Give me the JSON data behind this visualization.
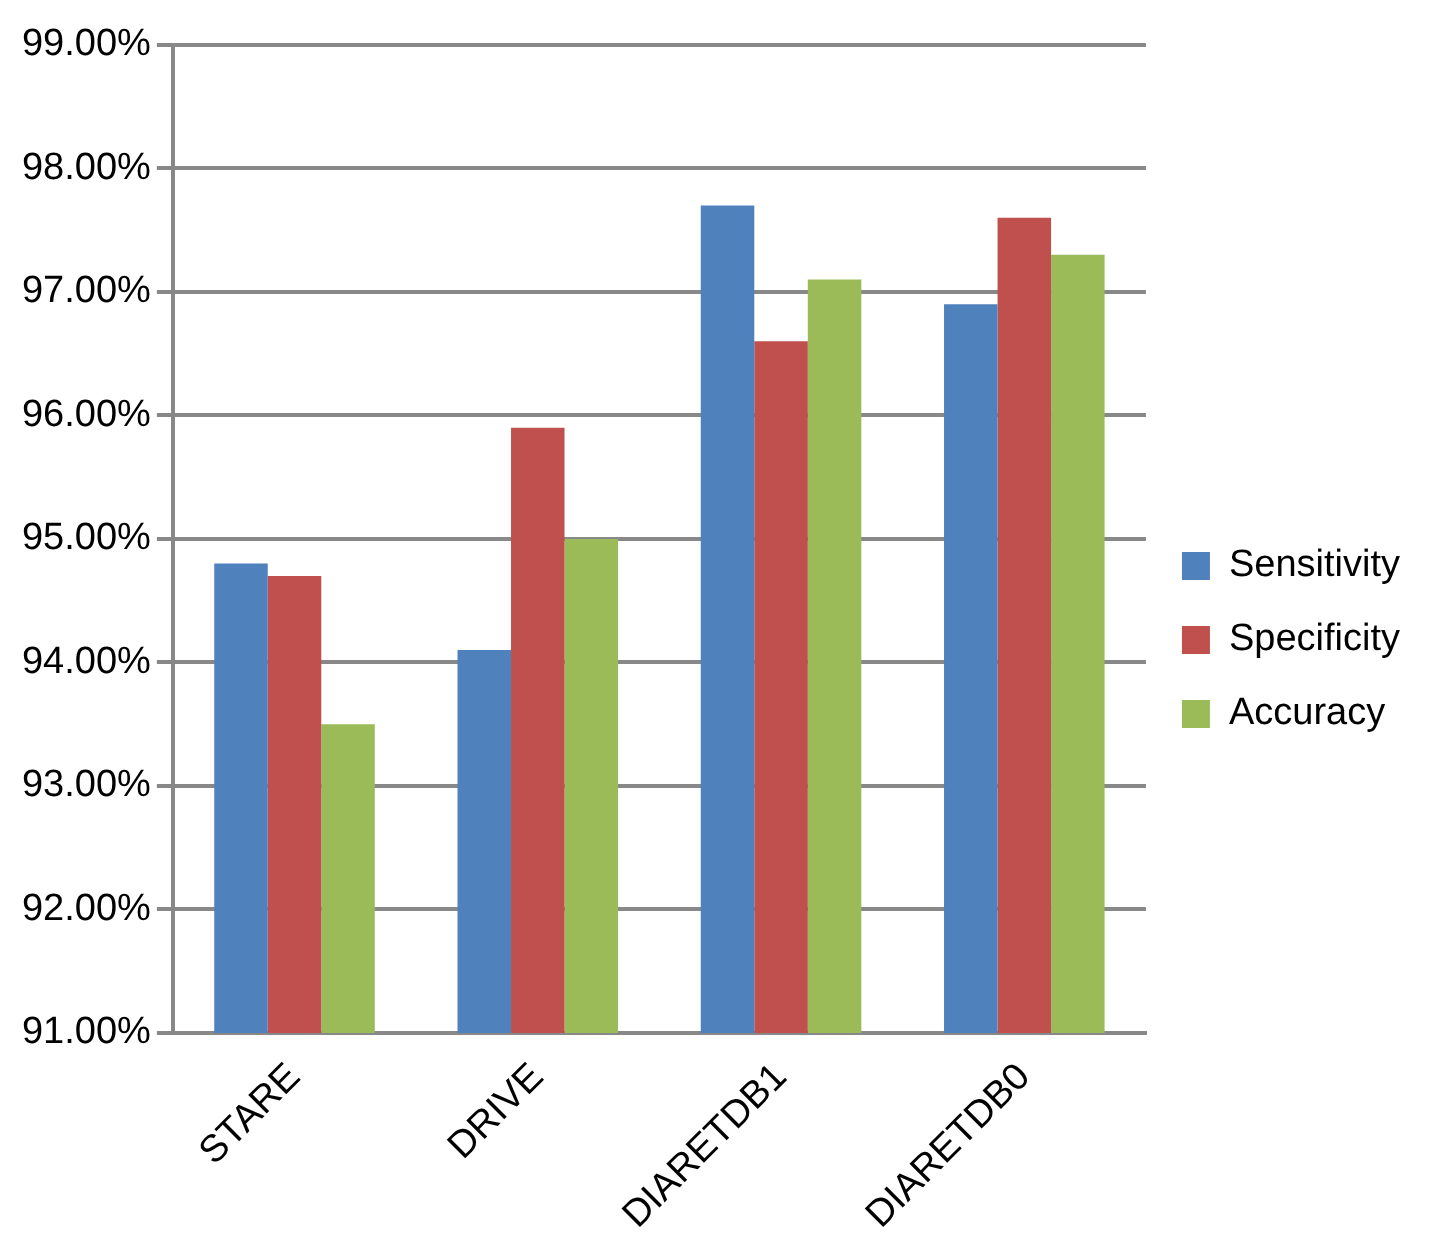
{
  "chart_data": {
    "type": "bar",
    "categories": [
      "STARE",
      "DRIVE",
      "DIARETDB1",
      "DIARETDB0"
    ],
    "series": [
      {
        "name": "Sensitivity",
        "color": "#4f81bd",
        "values": [
          94.8,
          94.1,
          97.7,
          96.9
        ]
      },
      {
        "name": "Specificity",
        "color": "#c0504d",
        "values": [
          94.7,
          95.9,
          96.6,
          97.6
        ]
      },
      {
        "name": "Accuracy",
        "color": "#9bbb59",
        "values": [
          93.5,
          95.0,
          97.1,
          97.3
        ]
      }
    ],
    "ylim": [
      91,
      99
    ],
    "yticks": [
      {
        "value": 91,
        "label": "91.00%"
      },
      {
        "value": 92,
        "label": "92.00%"
      },
      {
        "value": 93,
        "label": "93.00%"
      },
      {
        "value": 94,
        "label": "94.00%"
      },
      {
        "value": 95,
        "label": "95.00%"
      },
      {
        "value": 96,
        "label": "96.00%"
      },
      {
        "value": 97,
        "label": "97.00%"
      },
      {
        "value": 98,
        "label": "98.00%"
      },
      {
        "value": 99,
        "label": "99.00%"
      }
    ],
    "grid": "y",
    "legend": "right"
  }
}
